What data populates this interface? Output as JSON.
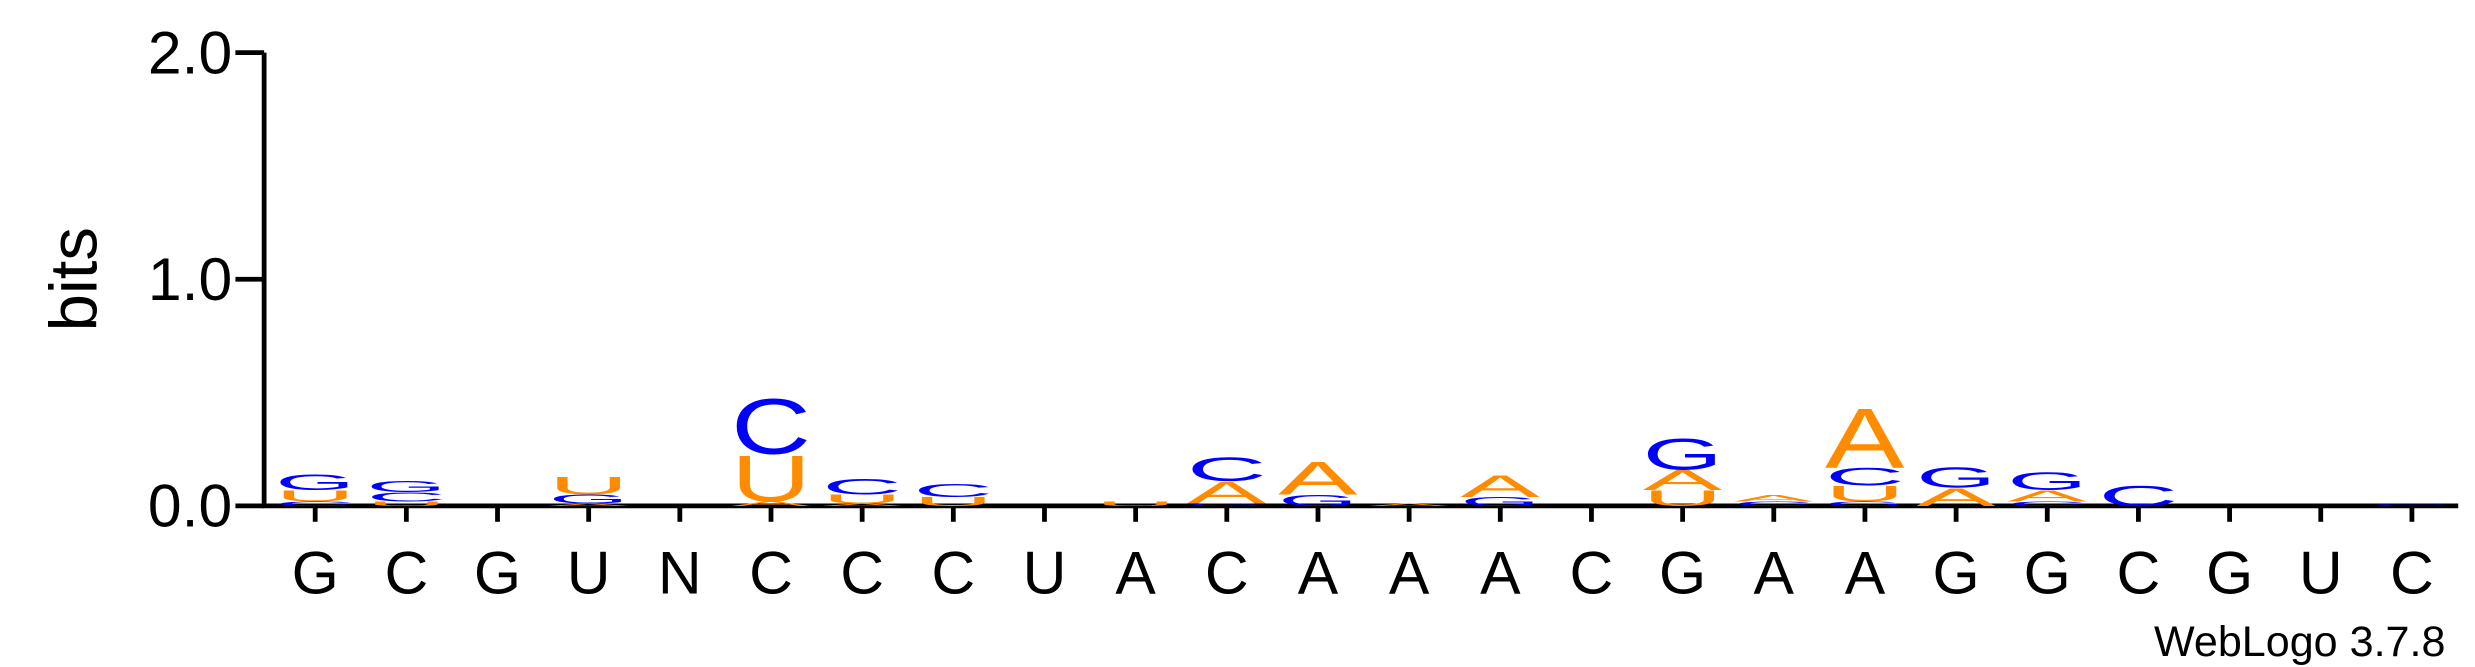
{
  "chart_data": {
    "type": "logo",
    "ylabel": "bits",
    "attribution": "WebLogo 3.7.8",
    "ylim": [
      0,
      2
    ],
    "yticks": [
      {
        "value": 0,
        "label": "0.0"
      },
      {
        "value": 1,
        "label": "1.0"
      },
      {
        "value": 2,
        "label": "2.0"
      }
    ],
    "colors": {
      "A": "#ff8c00",
      "U": "#ff8c00",
      "C": "#0000ff",
      "G": "#0000ff"
    },
    "categories": [
      "G",
      "C",
      "G",
      "U",
      "N",
      "C",
      "C",
      "C",
      "U",
      "A",
      "C",
      "A",
      "A",
      "A",
      "C",
      "G",
      "A",
      "A",
      "G",
      "G",
      "C",
      "G",
      "U",
      "C"
    ],
    "stacks": [
      [
        {
          "letter": "C",
          "bits": 0.02
        },
        {
          "letter": "U",
          "bits": 0.05
        },
        {
          "letter": "G",
          "bits": 0.07
        }
      ],
      [
        {
          "letter": "U",
          "bits": 0.02
        },
        {
          "letter": "C",
          "bits": 0.04
        },
        {
          "letter": "G",
          "bits": 0.05
        }
      ],
      [],
      [
        {
          "letter": "A",
          "bits": 0.01
        },
        {
          "letter": "G",
          "bits": 0.04
        },
        {
          "letter": "U",
          "bits": 0.08
        }
      ],
      [],
      [
        {
          "letter": "A",
          "bits": 0.02
        },
        {
          "letter": "U",
          "bits": 0.21
        },
        {
          "letter": "C",
          "bits": 0.25
        }
      ],
      [
        {
          "letter": "A",
          "bits": 0.01
        },
        {
          "letter": "U",
          "bits": 0.04
        },
        {
          "letter": "C",
          "bits": 0.07
        }
      ],
      [
        {
          "letter": "U",
          "bits": 0.04
        },
        {
          "letter": "C",
          "bits": 0.06
        }
      ],
      [],
      [
        {
          "letter": "U",
          "bits": 0.02
        }
      ],
      [
        {
          "letter": "G",
          "bits": 0.01
        },
        {
          "letter": "A",
          "bits": 0.1
        },
        {
          "letter": "C",
          "bits": 0.11
        }
      ],
      [
        {
          "letter": "G",
          "bits": 0.05
        },
        {
          "letter": "A",
          "bits": 0.15
        }
      ],
      [
        {
          "letter": "A",
          "bits": 0.01
        }
      ],
      [
        {
          "letter": "G",
          "bits": 0.04
        },
        {
          "letter": "A",
          "bits": 0.1
        }
      ],
      [],
      [
        {
          "letter": "U",
          "bits": 0.07
        },
        {
          "letter": "A",
          "bits": 0.09
        },
        {
          "letter": "G",
          "bits": 0.14
        }
      ],
      [
        {
          "letter": "C",
          "bits": 0.02
        },
        {
          "letter": "A",
          "bits": 0.03
        }
      ],
      [
        {
          "letter": "G",
          "bits": 0.02
        },
        {
          "letter": "U",
          "bits": 0.07
        },
        {
          "letter": "C",
          "bits": 0.08
        },
        {
          "letter": "A",
          "bits": 0.27
        }
      ],
      [
        {
          "letter": "A",
          "bits": 0.08
        },
        {
          "letter": "G",
          "bits": 0.09
        }
      ],
      [
        {
          "letter": "C",
          "bits": 0.02
        },
        {
          "letter": "A",
          "bits": 0.05
        },
        {
          "letter": "G",
          "bits": 0.08
        }
      ],
      [
        {
          "letter": "C",
          "bits": 0.09
        }
      ],
      [],
      [],
      [
        {
          "letter": "C",
          "bits": 0.01
        }
      ]
    ]
  }
}
